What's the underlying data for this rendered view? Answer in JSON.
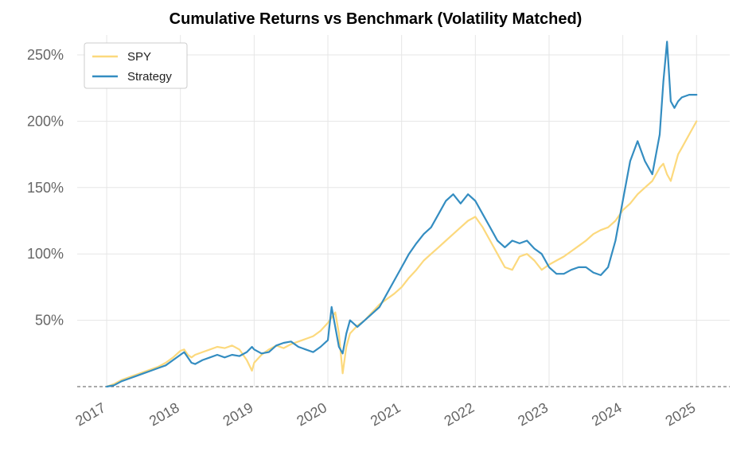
{
  "chart_data": {
    "type": "line",
    "title": "Cumulative Returns vs Benchmark (Volatility Matched)",
    "xlabel": "",
    "ylabel": "",
    "x_ticks": [
      "2017",
      "2018",
      "2019",
      "2020",
      "2021",
      "2022",
      "2023",
      "2024",
      "2025"
    ],
    "y_ticks": [
      "50%",
      "100%",
      "150%",
      "200%",
      "250%"
    ],
    "ylim": [
      0,
      265
    ],
    "xlim": [
      2016.6,
      2025.45
    ],
    "baseline": 0,
    "grid": true,
    "legend_position": "top-left",
    "x": [
      2017.0,
      2017.1,
      2017.2,
      2017.3,
      2017.4,
      2017.5,
      2017.6,
      2017.7,
      2017.8,
      2017.9,
      2018.0,
      2018.05,
      2018.1,
      2018.15,
      2018.2,
      2018.3,
      2018.4,
      2018.5,
      2018.6,
      2018.7,
      2018.8,
      2018.9,
      2018.97,
      2019.0,
      2019.1,
      2019.2,
      2019.3,
      2019.4,
      2019.5,
      2019.6,
      2019.7,
      2019.8,
      2019.9,
      2020.0,
      2020.05,
      2020.1,
      2020.15,
      2020.2,
      2020.25,
      2020.3,
      2020.4,
      2020.5,
      2020.6,
      2020.7,
      2020.8,
      2020.9,
      2021.0,
      2021.1,
      2021.2,
      2021.3,
      2021.4,
      2021.5,
      2021.6,
      2021.7,
      2021.8,
      2021.9,
      2022.0,
      2022.1,
      2022.2,
      2022.3,
      2022.4,
      2022.5,
      2022.6,
      2022.7,
      2022.8,
      2022.9,
      2023.0,
      2023.1,
      2023.2,
      2023.3,
      2023.4,
      2023.5,
      2023.6,
      2023.7,
      2023.8,
      2023.9,
      2024.0,
      2024.1,
      2024.2,
      2024.3,
      2024.4,
      2024.5,
      2024.55,
      2024.6,
      2024.65,
      2024.7,
      2024.75,
      2024.8,
      2024.9,
      2025.0
    ],
    "series": [
      {
        "name": "SPY",
        "color": "#fcd97d",
        "values": [
          0,
          2,
          5,
          7,
          9,
          11,
          13,
          15,
          18,
          22,
          27,
          28,
          24,
          22,
          24,
          26,
          28,
          30,
          29,
          31,
          28,
          20,
          12,
          18,
          24,
          28,
          31,
          29,
          32,
          34,
          36,
          38,
          42,
          48,
          52,
          56,
          40,
          10,
          30,
          40,
          46,
          50,
          56,
          62,
          66,
          70,
          75,
          82,
          88,
          95,
          100,
          105,
          110,
          115,
          120,
          125,
          128,
          120,
          110,
          100,
          90,
          88,
          98,
          100,
          95,
          88,
          92,
          95,
          98,
          102,
          106,
          110,
          115,
          118,
          120,
          125,
          133,
          138,
          145,
          150,
          155,
          165,
          168,
          160,
          155,
          165,
          175,
          180,
          190,
          200
        ]
      },
      {
        "name": "Strategy",
        "color": "#348dc1",
        "values": [
          0,
          1,
          4,
          6,
          8,
          10,
          12,
          14,
          16,
          20,
          24,
          26,
          22,
          18,
          17,
          20,
          22,
          24,
          22,
          24,
          23,
          26,
          30,
          28,
          25,
          26,
          31,
          33,
          34,
          30,
          28,
          26,
          30,
          35,
          60,
          45,
          30,
          25,
          40,
          50,
          45,
          50,
          55,
          60,
          70,
          80,
          90,
          100,
          108,
          115,
          120,
          130,
          140,
          145,
          138,
          145,
          140,
          130,
          120,
          110,
          105,
          110,
          108,
          110,
          104,
          100,
          90,
          85,
          85,
          88,
          90,
          90,
          86,
          84,
          90,
          110,
          140,
          170,
          185,
          170,
          160,
          190,
          230,
          260,
          215,
          210,
          215,
          218,
          220,
          220
        ]
      }
    ]
  }
}
